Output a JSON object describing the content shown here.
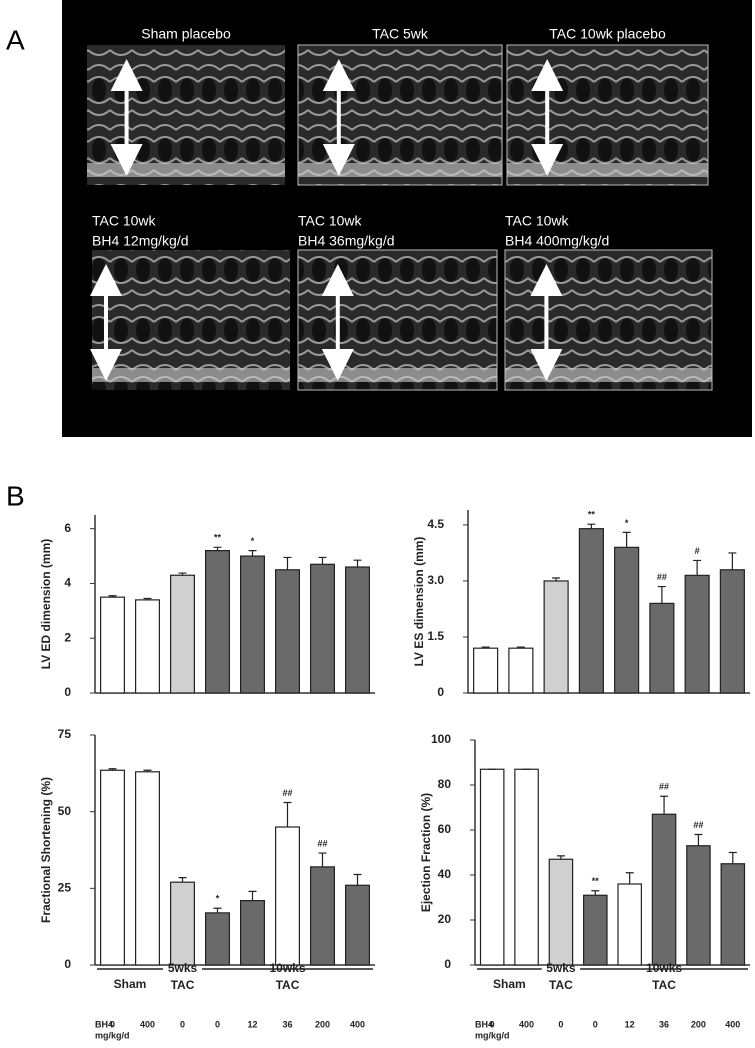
{
  "panel_a": {
    "label": "A",
    "images": [
      {
        "caption": [
          "Sham placebo"
        ]
      },
      {
        "caption": [
          "TAC 5wk"
        ]
      },
      {
        "caption": [
          "TAC 10wk placebo"
        ]
      },
      {
        "caption": [
          "TAC 10wk",
          "BH4 12mg/kg/d"
        ]
      },
      {
        "caption": [
          "TAC 10wk",
          "BH4 36mg/kg/d"
        ]
      },
      {
        "caption": [
          "TAC 10wk",
          "BH4 400mg/kg/d"
        ]
      }
    ]
  },
  "panel_b": {
    "label": "B"
  },
  "chart_data": [
    {
      "type": "bar",
      "ylabel": "LV ED dimension (mm)",
      "categories": [
        null,
        null,
        null,
        null,
        null,
        null,
        null,
        null
      ],
      "values": [
        3.5,
        3.4,
        4.3,
        5.2,
        5.0,
        4.5,
        4.7,
        4.6
      ],
      "errors": [
        0.05,
        0.05,
        0.08,
        0.12,
        0.2,
        0.45,
        0.25,
        0.25
      ],
      "colors": [
        "#ffffff",
        "#ffffff",
        "#d0d0d0",
        "#6a6a6a",
        "#6a6a6a",
        "#6a6a6a",
        "#6a6a6a",
        "#6a6a6a"
      ],
      "annotations": [
        null,
        null,
        null,
        "**",
        "*",
        null,
        null,
        null
      ],
      "ylim": [
        0,
        6.5
      ],
      "yticks": [
        0,
        2,
        4,
        6
      ]
    },
    {
      "type": "bar",
      "ylabel": "LV ES dimension (mm)",
      "categories": [
        null,
        null,
        null,
        null,
        null,
        null,
        null,
        null
      ],
      "values": [
        1.2,
        1.2,
        3.0,
        4.4,
        3.9,
        2.4,
        3.15,
        3.3
      ],
      "errors": [
        0.03,
        0.03,
        0.08,
        0.12,
        0.4,
        0.45,
        0.4,
        0.45
      ],
      "colors": [
        "#ffffff",
        "#ffffff",
        "#d0d0d0",
        "#6a6a6a",
        "#6a6a6a",
        "#6a6a6a",
        "#6a6a6a",
        "#6a6a6a"
      ],
      "annotations": [
        null,
        null,
        null,
        "**",
        "*",
        "##",
        "#",
        null
      ],
      "ylim": [
        0,
        4.9
      ],
      "yticks": [
        0,
        1.5,
        {
          "value": 3,
          "label": "3.0"
        },
        4.5
      ]
    },
    {
      "type": "bar",
      "ylabel": "Fractional Shortening (%)",
      "categories": [
        "0",
        "400",
        "0",
        "0",
        "12",
        "36",
        "200",
        "400"
      ],
      "values": [
        63.5,
        63,
        27,
        17,
        21,
        45,
        32,
        26
      ],
      "errors": [
        0.5,
        0.5,
        1.5,
        1.5,
        3,
        8,
        4.5,
        3.5
      ],
      "colors": [
        "#ffffff",
        "#ffffff",
        "#d0d0d0",
        "#6a6a6a",
        "#6a6a6a",
        "#ffffff",
        "#6a6a6a",
        "#6a6a6a"
      ],
      "annotations": [
        null,
        null,
        null,
        "*",
        null,
        "##",
        "##",
        null
      ],
      "ylim": [
        0,
        75
      ],
      "yticks": [
        0,
        25,
        50,
        75
      ],
      "groups": [
        [
          "Sham"
        ],
        [
          "5wks",
          "TAC"
        ],
        [
          "10wks",
          "TAC"
        ]
      ],
      "dose_label": [
        "BH4",
        "mg/kg/d"
      ]
    },
    {
      "type": "bar",
      "ylabel": "Ejection Fraction (%)",
      "categories": [
        "0",
        "400",
        "0",
        "0",
        "12",
        "36",
        "200",
        "400"
      ],
      "values": [
        87,
        87,
        47,
        31,
        36,
        67,
        53,
        45
      ],
      "errors": [
        0,
        0,
        1.5,
        2,
        5,
        8,
        5,
        5
      ],
      "colors": [
        "#ffffff",
        "#ffffff",
        "#d0d0d0",
        "#6a6a6a",
        "#ffffff",
        "#6a6a6a",
        "#6a6a6a",
        "#6a6a6a"
      ],
      "annotations": [
        null,
        null,
        null,
        "**",
        null,
        "##",
        "##",
        null
      ],
      "ylim": [
        0,
        100
      ],
      "yticks": [
        0,
        20,
        40,
        60,
        80,
        100
      ],
      "groups": [
        [
          "Sham"
        ],
        [
          "5wks",
          "TAC"
        ],
        [
          "10wks",
          "TAC"
        ]
      ],
      "dose_label": [
        "BH4",
        "mg/kg/d"
      ]
    }
  ]
}
